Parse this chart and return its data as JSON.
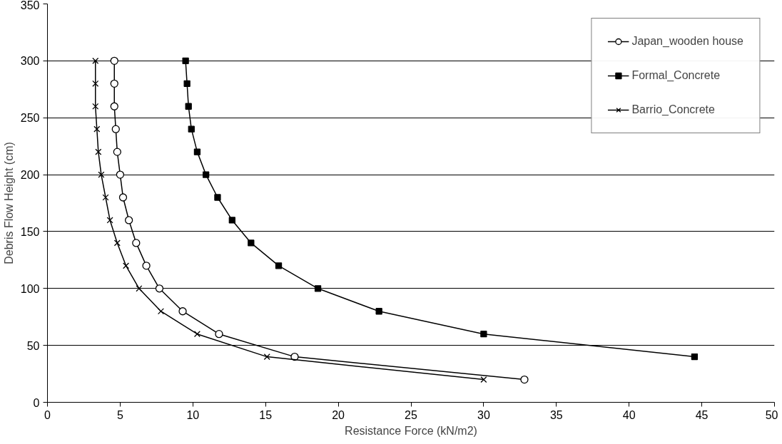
{
  "chart_data": {
    "type": "line",
    "xlabel": "Resistance Force (kN/m2)",
    "ylabel": "Debris Flow Height (cm)",
    "xlim": [
      0,
      50
    ],
    "xticks": [
      0,
      5,
      10,
      15,
      20,
      25,
      30,
      35,
      40,
      45,
      50
    ],
    "ylim": [
      0,
      350
    ],
    "yticks": [
      0,
      50,
      100,
      150,
      200,
      250,
      300,
      350
    ],
    "grid": "y",
    "legend": "top right",
    "line_style": "solid",
    "series": [
      {
        "name": "Japan_wooden house",
        "color": "#000000",
        "marker": "circle",
        "x": [
          4.6,
          4.6,
          4.6,
          4.7,
          4.8,
          5.0,
          5.2,
          5.6,
          6.1,
          6.8,
          7.7,
          9.3,
          11.8,
          17.0,
          32.8
        ],
        "values": [
          300,
          280,
          260,
          240,
          220,
          200,
          180,
          160,
          140,
          120,
          100,
          80,
          60,
          40,
          20
        ]
      },
      {
        "name": "Formal_Concrete",
        "color": "#000000",
        "marker": "square",
        "x": [
          9.5,
          9.6,
          9.7,
          9.9,
          10.3,
          10.9,
          11.7,
          12.7,
          14.0,
          15.9,
          18.6,
          22.8,
          30.0,
          44.5
        ],
        "values": [
          300,
          280,
          260,
          240,
          220,
          200,
          180,
          160,
          140,
          120,
          100,
          80,
          60,
          40
        ]
      },
      {
        "name": "Barrio_Concrete",
        "color": "#000000",
        "marker": "cross",
        "x": [
          3.3,
          3.3,
          3.3,
          3.4,
          3.5,
          3.7,
          4.0,
          4.3,
          4.8,
          5.4,
          6.3,
          7.8,
          10.3,
          15.1,
          30.0
        ],
        "values": [
          300,
          280,
          260,
          240,
          220,
          200,
          180,
          160,
          140,
          120,
          100,
          80,
          60,
          40,
          20
        ]
      }
    ]
  }
}
